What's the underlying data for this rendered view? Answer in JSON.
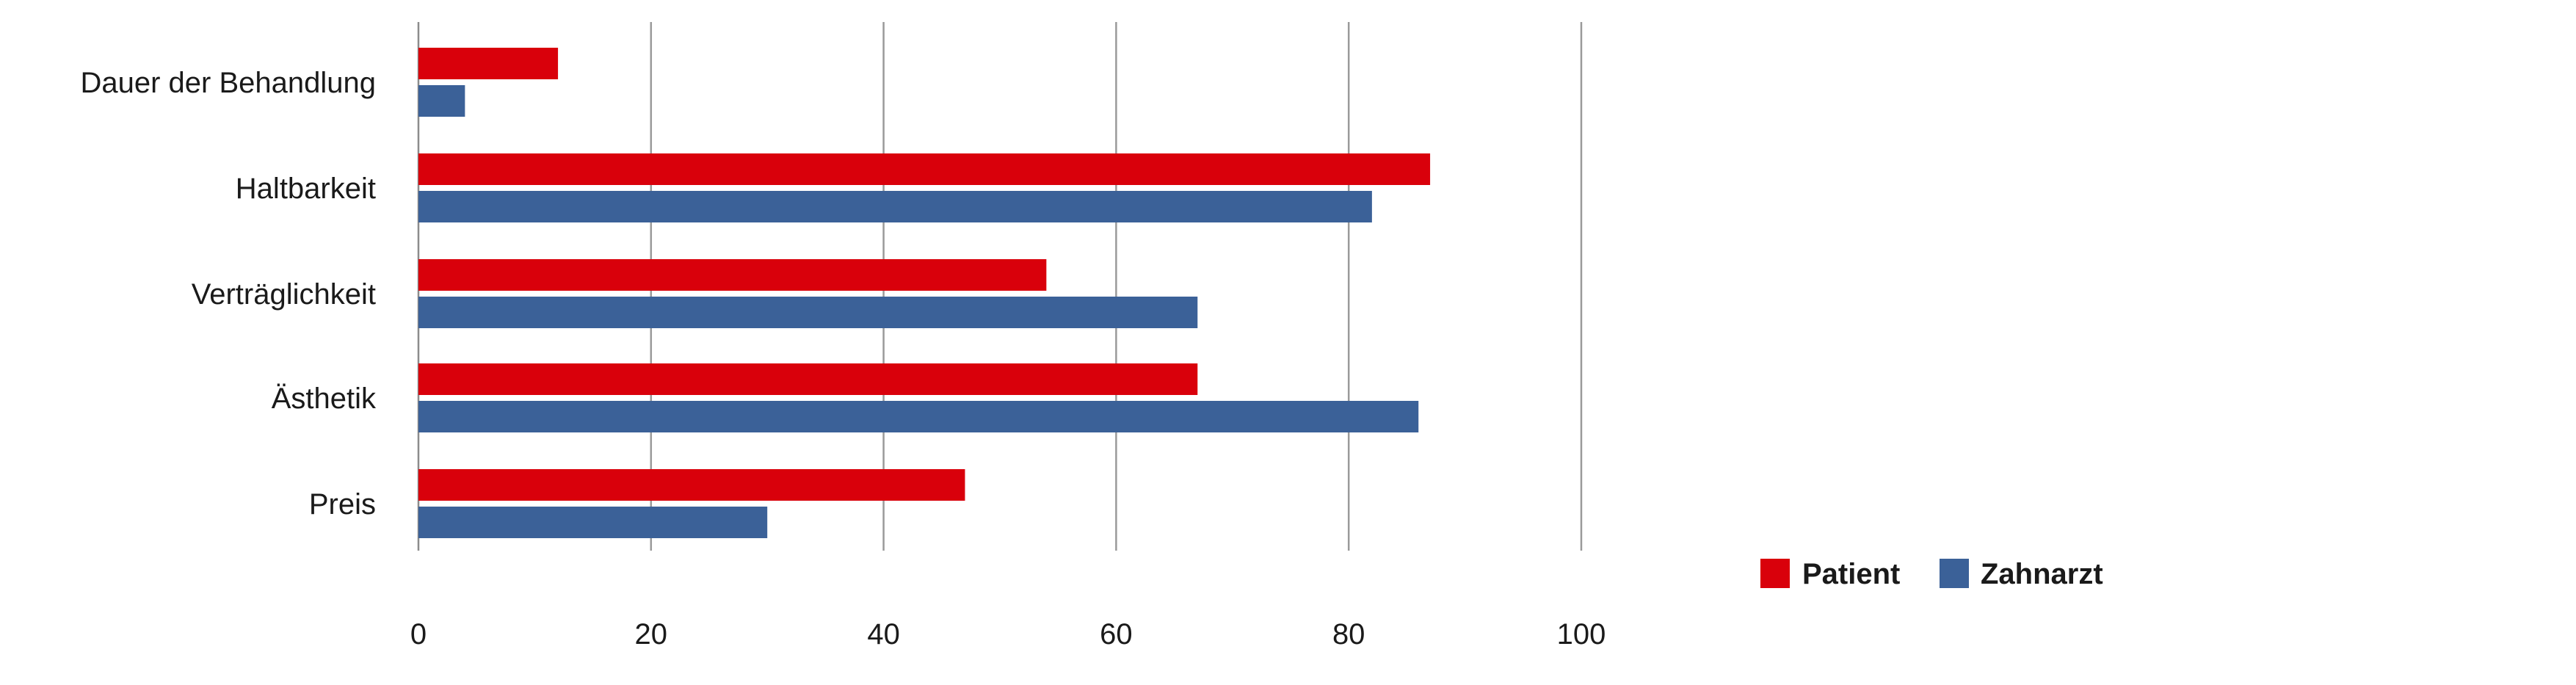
{
  "chart_data": {
    "type": "bar",
    "orientation": "horizontal",
    "categories": [
      "Dauer der Behandlung",
      "Haltbarkeit",
      "Verträglichkeit",
      "Ästhetik",
      "Preis"
    ],
    "series": [
      {
        "name": "Patient",
        "color": "#d9000b",
        "values": [
          12,
          87,
          54,
          67,
          47
        ]
      },
      {
        "name": "Zahnarzt",
        "color": "#3b6198",
        "values": [
          4,
          82,
          67,
          86,
          30
        ]
      }
    ],
    "xticks": [
      "0",
      "20",
      "40",
      "60",
      "80",
      "100"
    ],
    "xlim": [
      0,
      100
    ],
    "grid": true,
    "legend": "bottom-right",
    "title": "",
    "xlabel": "",
    "ylabel": ""
  }
}
